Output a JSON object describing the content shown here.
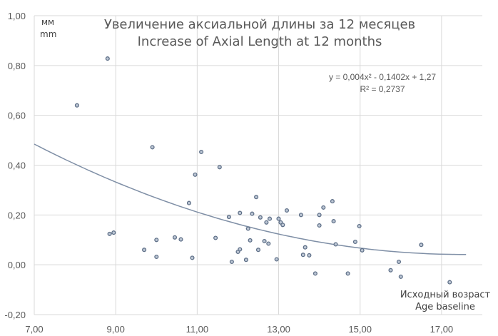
{
  "chart_data": {
    "type": "scatter",
    "title_lines": [
      "Увеличение аксиальной длины за 12 месяцев",
      "Increase of Axial Length at 12 months"
    ],
    "ylabel_lines": [
      "мм",
      "mm"
    ],
    "xlabel_lines": [
      "Исходный возраст",
      "Age baseline"
    ],
    "xlim": [
      7,
      18
    ],
    "ylim": [
      -0.2,
      1.0
    ],
    "x_ticks": [
      7,
      9,
      11,
      13,
      15,
      17
    ],
    "y_ticks": [
      -0.2,
      0,
      0.2,
      0.4,
      0.6,
      0.8,
      1.0
    ],
    "x_tick_labels": [
      "7,00",
      "9,00",
      "11,00",
      "13,00",
      "15,00",
      "17,00"
    ],
    "y_tick_labels": [
      "-0,20",
      "0,00",
      "0,20",
      "0,40",
      "0,60",
      "0,80",
      "1,00"
    ],
    "grid": true,
    "trendline": {
      "type": "polynomial",
      "coefficients": [
        0.004,
        -0.1402,
        1.27
      ],
      "x_range": [
        7,
        17.6
      ],
      "equation": "y = 0,004x² - 0,1402x + 1,27",
      "r_squared": "R² = 0,2737"
    },
    "points": [
      {
        "x": 8.05,
        "y": 0.64
      },
      {
        "x": 8.8,
        "y": 0.828
      },
      {
        "x": 8.85,
        "y": 0.124
      },
      {
        "x": 8.95,
        "y": 0.129
      },
      {
        "x": 9.7,
        "y": 0.06
      },
      {
        "x": 9.9,
        "y": 0.472
      },
      {
        "x": 10.0,
        "y": 0.1
      },
      {
        "x": 10.0,
        "y": 0.032
      },
      {
        "x": 10.45,
        "y": 0.11
      },
      {
        "x": 10.6,
        "y": 0.102
      },
      {
        "x": 10.8,
        "y": 0.248
      },
      {
        "x": 10.88,
        "y": 0.028
      },
      {
        "x": 10.95,
        "y": 0.362
      },
      {
        "x": 11.1,
        "y": 0.453
      },
      {
        "x": 11.45,
        "y": 0.108
      },
      {
        "x": 11.55,
        "y": 0.392
      },
      {
        "x": 11.78,
        "y": 0.192
      },
      {
        "x": 11.85,
        "y": 0.012
      },
      {
        "x": 12.0,
        "y": 0.052
      },
      {
        "x": 12.05,
        "y": 0.062
      },
      {
        "x": 12.05,
        "y": 0.208
      },
      {
        "x": 12.2,
        "y": 0.02
      },
      {
        "x": 12.25,
        "y": 0.145
      },
      {
        "x": 12.3,
        "y": 0.098
      },
      {
        "x": 12.35,
        "y": 0.205
      },
      {
        "x": 12.45,
        "y": 0.272
      },
      {
        "x": 12.5,
        "y": 0.06
      },
      {
        "x": 12.55,
        "y": 0.19
      },
      {
        "x": 12.65,
        "y": 0.095
      },
      {
        "x": 12.7,
        "y": 0.17
      },
      {
        "x": 12.75,
        "y": 0.085
      },
      {
        "x": 12.78,
        "y": 0.185
      },
      {
        "x": 12.95,
        "y": 0.022
      },
      {
        "x": 13.0,
        "y": 0.185
      },
      {
        "x": 13.05,
        "y": 0.17
      },
      {
        "x": 13.1,
        "y": 0.16
      },
      {
        "x": 13.2,
        "y": 0.218
      },
      {
        "x": 13.55,
        "y": 0.2
      },
      {
        "x": 13.6,
        "y": 0.04
      },
      {
        "x": 13.65,
        "y": 0.07
      },
      {
        "x": 13.75,
        "y": 0.038
      },
      {
        "x": 13.9,
        "y": -0.035
      },
      {
        "x": 14.0,
        "y": 0.2
      },
      {
        "x": 14.0,
        "y": 0.158
      },
      {
        "x": 14.1,
        "y": 0.23
      },
      {
        "x": 14.32,
        "y": 0.255
      },
      {
        "x": 14.35,
        "y": 0.175
      },
      {
        "x": 14.4,
        "y": 0.082
      },
      {
        "x": 14.7,
        "y": -0.035
      },
      {
        "x": 14.88,
        "y": 0.092
      },
      {
        "x": 14.98,
        "y": 0.155
      },
      {
        "x": 15.05,
        "y": 0.058
      },
      {
        "x": 15.75,
        "y": -0.022
      },
      {
        "x": 15.95,
        "y": 0.012
      },
      {
        "x": 16.0,
        "y": -0.048
      },
      {
        "x": 16.5,
        "y": 0.08
      },
      {
        "x": 17.2,
        "y": -0.07
      }
    ]
  }
}
